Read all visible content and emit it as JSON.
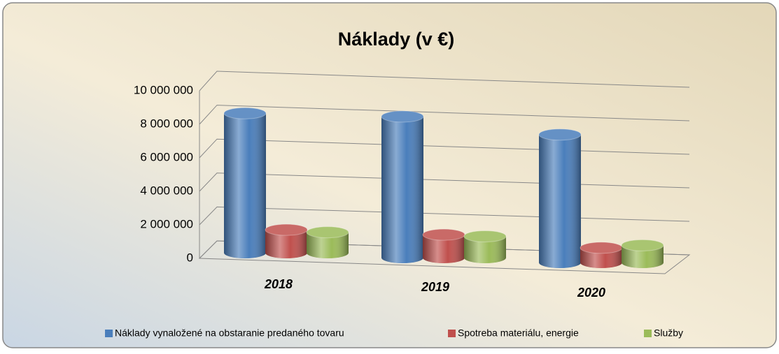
{
  "chart_data": {
    "type": "bar3d",
    "title": "Náklady (v €)",
    "categories": [
      "2018",
      "2019",
      "2020"
    ],
    "series": [
      {
        "name": "Náklady vynaložené na obstaranie predaného tovaru",
        "color": "#4a7ebb",
        "values": [
          8500000,
          8600000,
          7800000
        ]
      },
      {
        "name": "Spotreba materiálu, energie",
        "color": "#c0504d",
        "values": [
          1400000,
          1400000,
          900000
        ]
      },
      {
        "name": "Služby",
        "color": "#9bbb59",
        "values": [
          1250000,
          1300000,
          1050000
        ]
      }
    ],
    "ylim": [
      0,
      10000000
    ],
    "yticks": [
      {
        "value": 0,
        "label": "0"
      },
      {
        "value": 2000000,
        "label": "2 000 000"
      },
      {
        "value": 4000000,
        "label": "4 000 000"
      },
      {
        "value": 6000000,
        "label": "6 000 000"
      },
      {
        "value": 8000000,
        "label": "8 000 000"
      },
      {
        "value": 10000000,
        "label": "10 000 000"
      }
    ],
    "grid": true,
    "legend": "bottom"
  }
}
